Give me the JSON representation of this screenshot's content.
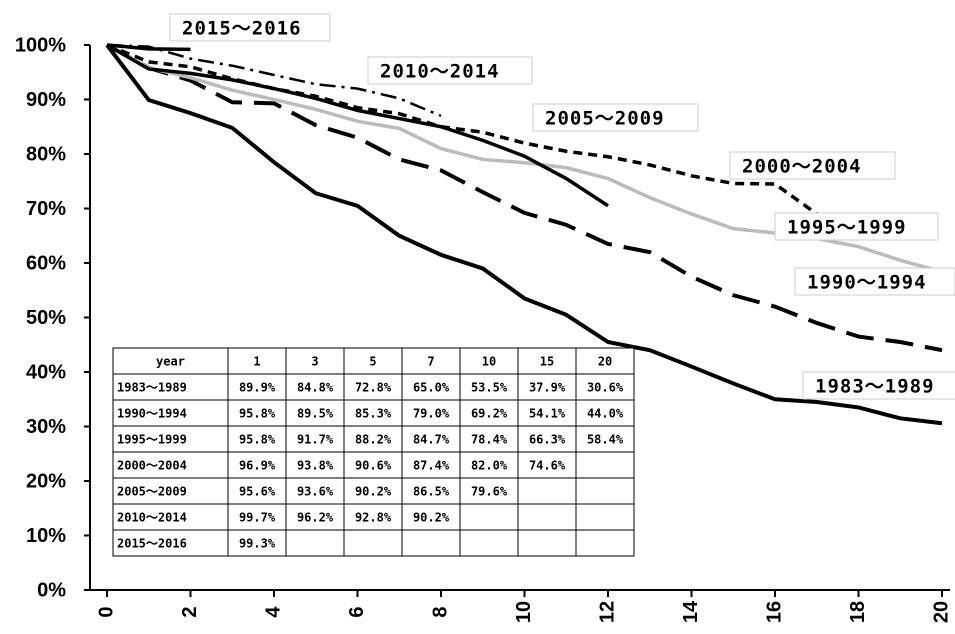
{
  "chart_data": {
    "type": "line",
    "x": [
      0,
      1,
      2,
      3,
      4,
      5,
      6,
      7,
      8,
      9,
      10,
      11,
      12,
      13,
      14,
      15,
      16,
      17,
      18,
      19,
      20
    ],
    "xlim": [
      0,
      20
    ],
    "xticks": [
      0,
      2,
      4,
      6,
      8,
      10,
      12,
      14,
      16,
      18,
      20
    ],
    "ylim": [
      0,
      100
    ],
    "yticks": [
      {
        "value": 0,
        "label": "0%"
      },
      {
        "value": 10,
        "label": "10%"
      },
      {
        "value": 20,
        "label": "20%"
      },
      {
        "value": 30,
        "label": "30%"
      },
      {
        "value": 40,
        "label": "40%"
      },
      {
        "value": 50,
        "label": "50%"
      },
      {
        "value": 60,
        "label": "60%"
      },
      {
        "value": 70,
        "label": "70%"
      },
      {
        "value": 80,
        "label": "80%"
      },
      {
        "value": 90,
        "label": "90%"
      },
      {
        "value": 100,
        "label": "100%"
      }
    ],
    "series": [
      {
        "name": "1983～1989",
        "color": "#000000",
        "line_style": "solid",
        "values": [
          100,
          89.9,
          87.5,
          84.8,
          78.5,
          72.8,
          70.5,
          65.0,
          61.5,
          59,
          53.5,
          50.5,
          45.5,
          44,
          41,
          37.9,
          35,
          34.5,
          33.5,
          31.5,
          30.6
        ]
      },
      {
        "name": "1990～1994",
        "color": "#000000",
        "line_style": "long-dash",
        "values": [
          100,
          95.8,
          93.5,
          89.5,
          89.3,
          85.3,
          83,
          79.0,
          77,
          73,
          69.2,
          67,
          63.5,
          62,
          57.5,
          54.1,
          52,
          49,
          46.5,
          45.5,
          44.0
        ]
      },
      {
        "name": "1995～1999",
        "color": "#bbbbbb",
        "line_style": "solid",
        "values": [
          100,
          95.8,
          94,
          91.7,
          90,
          88.2,
          86,
          84.7,
          81,
          79,
          78.4,
          77.5,
          75.5,
          72,
          69,
          66.3,
          65.5,
          64.5,
          63,
          60.5,
          58.4
        ]
      },
      {
        "name": "2000～2004",
        "color": "#000000",
        "line_style": "short-dash",
        "values": [
          100,
          96.9,
          96,
          93.8,
          92,
          90.6,
          88.5,
          87.4,
          85,
          84,
          82.0,
          80.5,
          79.5,
          78,
          76,
          74.6,
          74.5,
          69,
          null,
          null,
          null
        ]
      },
      {
        "name": "2005～2009",
        "color": "#000000",
        "line_style": "solid",
        "values": [
          100,
          95.6,
          94.8,
          93.6,
          92,
          90.2,
          88,
          86.5,
          85,
          82.5,
          79.6,
          75.5,
          70.5,
          null,
          null,
          null,
          null,
          null,
          null,
          null,
          null
        ]
      },
      {
        "name": "2010～2014",
        "color": "#000000",
        "line_style": "dash-dot",
        "values": [
          100,
          99.7,
          97.5,
          96.2,
          94.5,
          92.8,
          92,
          90.2,
          87,
          null,
          null,
          null,
          null,
          null,
          null,
          null,
          null,
          null,
          null,
          null,
          null
        ]
      },
      {
        "name": "2015～2016",
        "color": "#000000",
        "line_style": "solid",
        "values": [
          100,
          99.3,
          99.2,
          null,
          null,
          null,
          null,
          null,
          null,
          null,
          null,
          null,
          null,
          null,
          null,
          null,
          null,
          null,
          null,
          null,
          null
        ]
      }
    ],
    "table": {
      "header": [
        "year",
        "1",
        "3",
        "5",
        "7",
        "10",
        "15",
        "20"
      ],
      "rows": [
        [
          "1983～1989",
          "89.9%",
          "84.8%",
          "72.8%",
          "65.0%",
          "53.5%",
          "37.9%",
          "30.6%"
        ],
        [
          "1990～1994",
          "95.8%",
          "89.5%",
          "85.3%",
          "79.0%",
          "69.2%",
          "54.1%",
          "44.0%"
        ],
        [
          "1995～1999",
          "95.8%",
          "91.7%",
          "88.2%",
          "84.7%",
          "78.4%",
          "66.3%",
          "58.4%"
        ],
        [
          "2000～2004",
          "96.9%",
          "93.8%",
          "90.6%",
          "87.4%",
          "82.0%",
          "74.6%"
        ],
        [
          "2005～2009",
          "95.6%",
          "93.6%",
          "90.2%",
          "86.5%",
          "79.6%"
        ],
        [
          "2010～2014",
          "99.7%",
          "96.2%",
          "92.8%",
          "90.2%"
        ],
        [
          "2015～2016",
          "99.3%"
        ]
      ]
    }
  }
}
